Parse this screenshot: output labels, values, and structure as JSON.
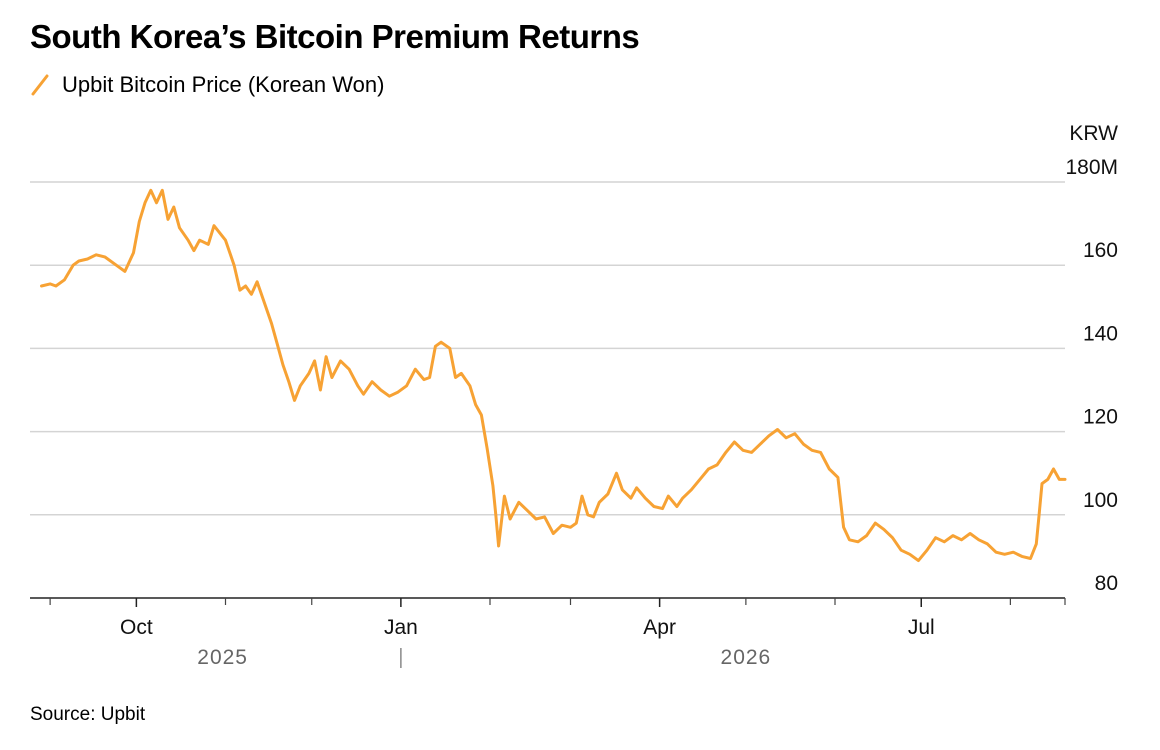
{
  "header": {
    "title": "South Korea’s Bitcoin Premium Returns"
  },
  "legend": {
    "label": "Upbit Bitcoin Price (Korean Won)",
    "color": "#f7a234"
  },
  "source": "Source: Upbit",
  "chart_data": {
    "type": "line",
    "title": "South Korea’s Bitcoin Premium Returns",
    "ylabel": "KRW",
    "yunit_top_label": "180M",
    "ylim": [
      80,
      180
    ],
    "yticks": [
      80,
      100,
      120,
      140,
      160,
      180
    ],
    "ytick_labels": [
      "80",
      "100",
      "120",
      "140",
      "160",
      "180M"
    ],
    "xlim": [
      "2025-08-25",
      "2026-08-20"
    ],
    "xticks_labeled": [
      {
        "date": "2025-10-01",
        "label": "Oct"
      },
      {
        "date": "2026-01-01",
        "label": "Jan"
      },
      {
        "date": "2026-04-01",
        "label": "Apr"
      },
      {
        "date": "2026-07-01",
        "label": "Jul"
      }
    ],
    "xticks_minor": [
      "2025-09-01",
      "2025-11-01",
      "2025-12-01",
      "2026-02-01",
      "2026-03-01",
      "2026-05-01",
      "2026-06-01",
      "2026-08-01",
      "2026-08-20"
    ],
    "year_labels": [
      {
        "label": "2025",
        "date": "2025-10-31"
      },
      {
        "label": "2026",
        "date": "2026-05-01"
      }
    ],
    "year_divider_date": "2026-01-01",
    "grid": true,
    "legend_position": "top-left",
    "series": [
      {
        "name": "Upbit Bitcoin Price (Korean Won)",
        "color": "#f7a234",
        "points": [
          [
            "2025-08-29",
            155
          ],
          [
            "2025-09-01",
            155.5
          ],
          [
            "2025-09-03",
            155
          ],
          [
            "2025-09-06",
            156.5
          ],
          [
            "2025-09-09",
            160
          ],
          [
            "2025-09-11",
            161
          ],
          [
            "2025-09-14",
            161.5
          ],
          [
            "2025-09-17",
            162.5
          ],
          [
            "2025-09-20",
            162
          ],
          [
            "2025-09-24",
            160
          ],
          [
            "2025-09-27",
            158.5
          ],
          [
            "2025-09-30",
            163
          ],
          [
            "2025-10-02",
            170.5
          ],
          [
            "2025-10-04",
            175
          ],
          [
            "2025-10-06",
            178
          ],
          [
            "2025-10-08",
            175
          ],
          [
            "2025-10-10",
            178
          ],
          [
            "2025-10-12",
            171
          ],
          [
            "2025-10-14",
            174
          ],
          [
            "2025-10-16",
            169
          ],
          [
            "2025-10-19",
            166
          ],
          [
            "2025-10-21",
            163.5
          ],
          [
            "2025-10-23",
            166
          ],
          [
            "2025-10-26",
            165
          ],
          [
            "2025-10-28",
            169.5
          ],
          [
            "2025-11-01",
            166
          ],
          [
            "2025-11-04",
            160
          ],
          [
            "2025-11-06",
            154
          ],
          [
            "2025-11-08",
            155
          ],
          [
            "2025-11-10",
            153
          ],
          [
            "2025-11-12",
            156
          ],
          [
            "2025-11-14",
            152
          ],
          [
            "2025-11-17",
            146
          ],
          [
            "2025-11-19",
            141
          ],
          [
            "2025-11-21",
            136
          ],
          [
            "2025-11-23",
            132
          ],
          [
            "2025-11-25",
            127.5
          ],
          [
            "2025-11-27",
            131
          ],
          [
            "2025-11-30",
            134
          ],
          [
            "2025-12-02",
            137
          ],
          [
            "2025-12-04",
            130
          ],
          [
            "2025-12-06",
            138
          ],
          [
            "2025-12-08",
            133
          ],
          [
            "2025-12-11",
            137
          ],
          [
            "2025-12-14",
            135
          ],
          [
            "2025-12-17",
            131
          ],
          [
            "2025-12-19",
            129
          ],
          [
            "2025-12-22",
            132
          ],
          [
            "2025-12-25",
            130
          ],
          [
            "2025-12-28",
            128.5
          ],
          [
            "2025-12-31",
            129.5
          ],
          [
            "2026-01-03",
            131
          ],
          [
            "2026-01-06",
            135
          ],
          [
            "2026-01-09",
            132.5
          ],
          [
            "2026-01-11",
            133
          ],
          [
            "2026-01-13",
            140.5
          ],
          [
            "2026-01-15",
            141.5
          ],
          [
            "2026-01-18",
            140
          ],
          [
            "2026-01-20",
            133
          ],
          [
            "2026-01-22",
            134
          ],
          [
            "2026-01-25",
            131
          ],
          [
            "2026-01-27",
            126.5
          ],
          [
            "2026-01-29",
            124
          ],
          [
            "2026-01-31",
            116
          ],
          [
            "2026-02-02",
            107
          ],
          [
            "2026-02-03",
            100
          ],
          [
            "2026-02-04",
            92.5
          ],
          [
            "2026-02-06",
            104.5
          ],
          [
            "2026-02-08",
            99
          ],
          [
            "2026-02-11",
            103
          ],
          [
            "2026-02-14",
            101
          ],
          [
            "2026-02-17",
            99
          ],
          [
            "2026-02-20",
            99.5
          ],
          [
            "2026-02-23",
            95.5
          ],
          [
            "2026-02-26",
            97.5
          ],
          [
            "2026-03-01",
            97
          ],
          [
            "2026-03-03",
            98
          ],
          [
            "2026-03-05",
            104.5
          ],
          [
            "2026-03-07",
            100
          ],
          [
            "2026-03-09",
            99.5
          ],
          [
            "2026-03-11",
            103
          ],
          [
            "2026-03-14",
            105
          ],
          [
            "2026-03-17",
            110
          ],
          [
            "2026-03-19",
            106
          ],
          [
            "2026-03-22",
            104
          ],
          [
            "2026-03-24",
            106.5
          ],
          [
            "2026-03-27",
            104
          ],
          [
            "2026-03-30",
            102
          ],
          [
            "2026-04-02",
            101.5
          ],
          [
            "2026-04-04",
            104.5
          ],
          [
            "2026-04-07",
            102
          ],
          [
            "2026-04-09",
            104
          ],
          [
            "2026-04-12",
            106
          ],
          [
            "2026-04-15",
            108.5
          ],
          [
            "2026-04-18",
            111
          ],
          [
            "2026-04-21",
            112
          ],
          [
            "2026-04-24",
            115
          ],
          [
            "2026-04-27",
            117.5
          ],
          [
            "2026-04-30",
            115.5
          ],
          [
            "2026-05-03",
            115
          ],
          [
            "2026-05-06",
            117
          ],
          [
            "2026-05-09",
            119
          ],
          [
            "2026-05-12",
            120.5
          ],
          [
            "2026-05-15",
            118.5
          ],
          [
            "2026-05-18",
            119.5
          ],
          [
            "2026-05-21",
            117
          ],
          [
            "2026-05-24",
            115.5
          ],
          [
            "2026-05-27",
            115
          ],
          [
            "2026-05-30",
            111
          ],
          [
            "2026-06-02",
            109
          ],
          [
            "2026-06-04",
            97
          ],
          [
            "2026-06-06",
            94
          ],
          [
            "2026-06-09",
            93.5
          ],
          [
            "2026-06-12",
            95
          ],
          [
            "2026-06-15",
            98
          ],
          [
            "2026-06-18",
            96.5
          ],
          [
            "2026-06-21",
            94.5
          ],
          [
            "2026-06-24",
            91.5
          ],
          [
            "2026-06-27",
            90.5
          ],
          [
            "2026-06-30",
            89
          ],
          [
            "2026-07-03",
            91.5
          ],
          [
            "2026-07-06",
            94.5
          ],
          [
            "2026-07-09",
            93.5
          ],
          [
            "2026-07-12",
            95
          ],
          [
            "2026-07-15",
            94
          ],
          [
            "2026-07-18",
            95.5
          ],
          [
            "2026-07-21",
            94
          ],
          [
            "2026-07-24",
            93
          ],
          [
            "2026-07-27",
            91
          ],
          [
            "2026-07-30",
            90.5
          ],
          [
            "2026-08-02",
            91
          ],
          [
            "2026-08-05",
            90
          ],
          [
            "2026-08-08",
            89.5
          ],
          [
            "2026-08-10",
            93
          ],
          [
            "2026-08-11",
            100
          ],
          [
            "2026-08-12",
            107.5
          ],
          [
            "2026-08-14",
            108.5
          ],
          [
            "2026-08-16",
            111
          ],
          [
            "2026-08-18",
            108.5
          ],
          [
            "2026-08-20",
            108.5
          ]
        ]
      }
    ]
  }
}
